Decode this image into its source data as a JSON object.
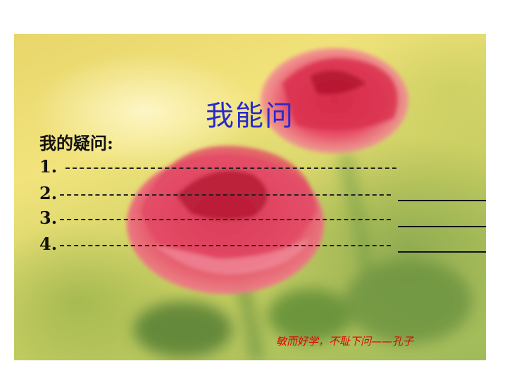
{
  "slide": {
    "title": "我能问",
    "question_heading": "我的疑问:",
    "questions": [
      {
        "number": "1. "
      },
      {
        "number": "2."
      },
      {
        "number": "3."
      },
      {
        "number": "4."
      }
    ],
    "quote": "敏而好学，不耻下问——孔子"
  },
  "colors": {
    "title": "#2a2acc",
    "quote": "#e00000",
    "rose": "#d8344f"
  }
}
